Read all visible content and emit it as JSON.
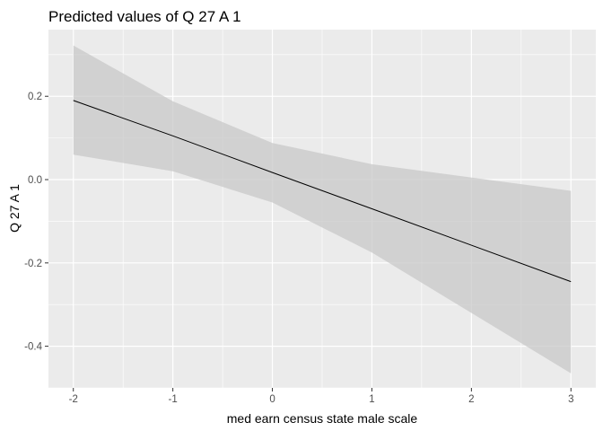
{
  "chart_data": {
    "type": "line",
    "title": "Predicted values of Q 27 A 1",
    "xlabel": "med earn census state male scale",
    "ylabel": "Q 27 A 1",
    "x": [
      -2,
      -1,
      0,
      1,
      3
    ],
    "series": [
      {
        "values": [
          0.19,
          0.105,
          0.017,
          -0.07,
          -0.245
        ],
        "ci_upper": [
          0.322,
          0.188,
          0.088,
          0.037,
          -0.027
        ],
        "ci_lower": [
          0.06,
          0.02,
          -0.055,
          -0.175,
          -0.465
        ],
        "line_color": "#000000",
        "ribbon_color": "#c8c8c8"
      }
    ],
    "xlim": [
      -2.25,
      3.25
    ],
    "ylim": [
      -0.5,
      0.36
    ],
    "x_ticks": [
      -2,
      -1,
      0,
      1,
      2,
      3
    ],
    "y_ticks": [
      -0.4,
      -0.2,
      0.0,
      0.2
    ],
    "x_tick_labels": [
      "-2",
      "-1",
      "0",
      "1",
      "2",
      "3"
    ],
    "y_tick_labels": [
      "-0.4",
      "-0.2",
      "0.0",
      "0.2"
    ],
    "grid": true,
    "panel_background": "#ebebeb",
    "grid_color": "#ffffff"
  }
}
